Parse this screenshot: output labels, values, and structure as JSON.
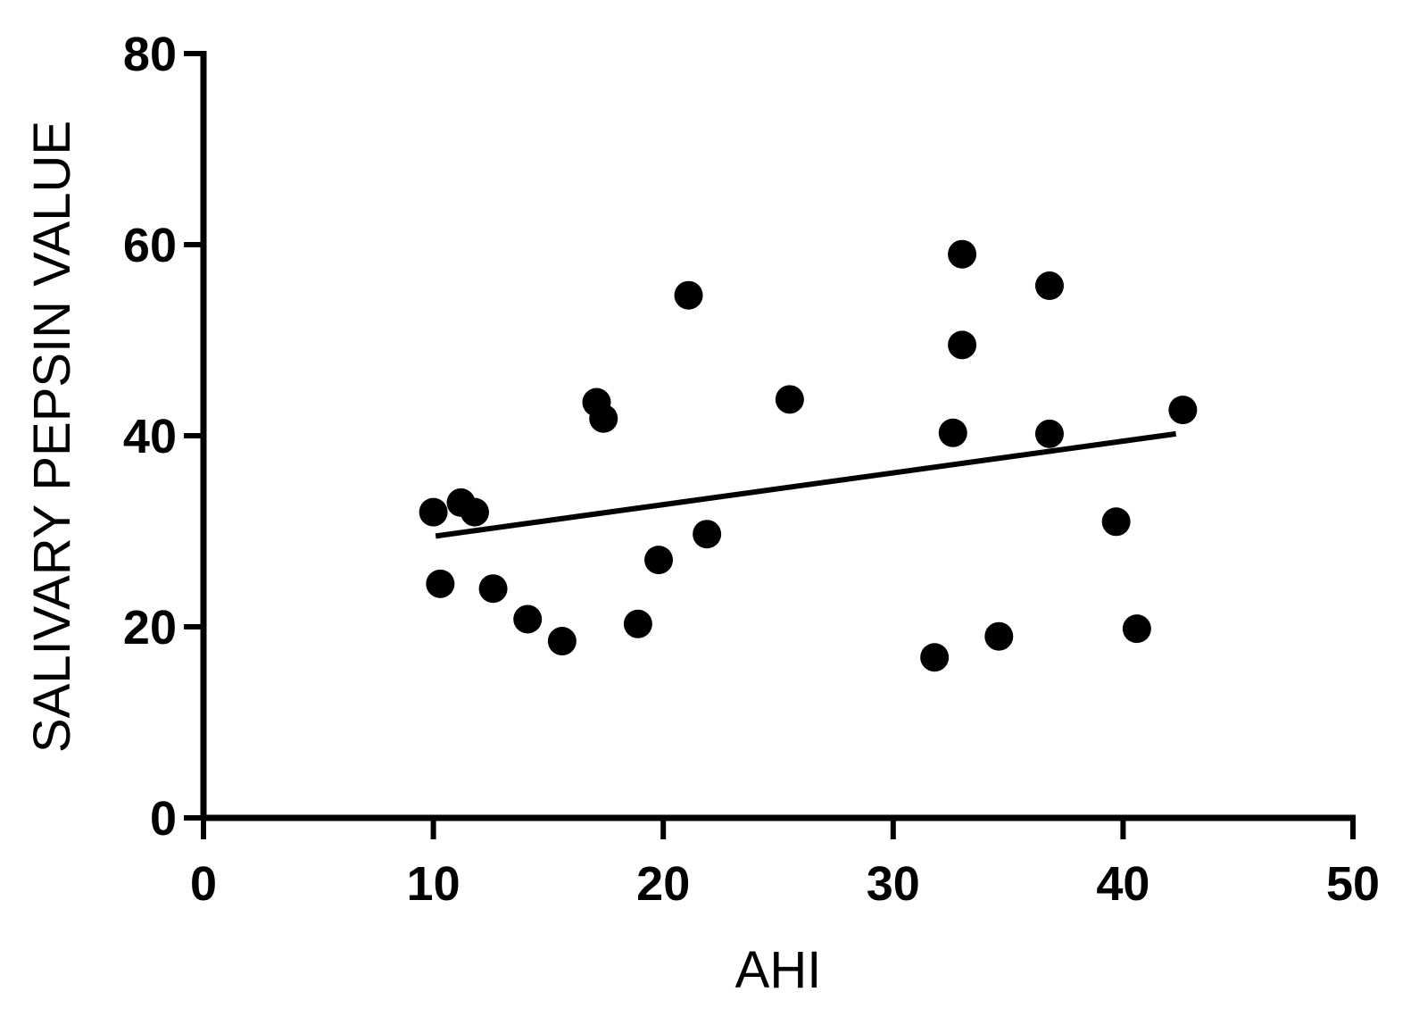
{
  "chart_data": {
    "type": "scatter",
    "title": "",
    "xlabel": "AHI",
    "ylabel": "SALIVARY PEPSIN VALUE",
    "xlim": [
      0,
      50
    ],
    "ylim": [
      0,
      80
    ],
    "x_ticks": [
      "0",
      "10",
      "20",
      "30",
      "40",
      "50"
    ],
    "y_ticks": [
      "0",
      "20",
      "40",
      "60",
      "80"
    ],
    "grid": false,
    "legend": "none",
    "colors": {
      "points": "#000000",
      "axes": "#000000",
      "fit_line": "#000000"
    },
    "series": [
      {
        "points": [
          {
            "x": 10.0,
            "y": 32.0
          },
          {
            "x": 10.3,
            "y": 24.5
          },
          {
            "x": 11.2,
            "y": 33.0
          },
          {
            "x": 11.8,
            "y": 32.0
          },
          {
            "x": 12.6,
            "y": 24.0
          },
          {
            "x": 14.1,
            "y": 20.8
          },
          {
            "x": 15.6,
            "y": 18.5
          },
          {
            "x": 17.1,
            "y": 43.5
          },
          {
            "x": 17.4,
            "y": 41.8
          },
          {
            "x": 18.9,
            "y": 20.3
          },
          {
            "x": 19.8,
            "y": 27.0
          },
          {
            "x": 21.1,
            "y": 54.7
          },
          {
            "x": 21.9,
            "y": 29.7
          },
          {
            "x": 25.5,
            "y": 43.8
          },
          {
            "x": 31.8,
            "y": 16.8
          },
          {
            "x": 32.6,
            "y": 40.3
          },
          {
            "x": 33.0,
            "y": 59.0
          },
          {
            "x": 33.0,
            "y": 49.5
          },
          {
            "x": 34.6,
            "y": 19.0
          },
          {
            "x": 36.8,
            "y": 55.7
          },
          {
            "x": 36.8,
            "y": 40.2
          },
          {
            "x": 39.7,
            "y": 31.0
          },
          {
            "x": 40.6,
            "y": 19.8
          },
          {
            "x": 42.6,
            "y": 42.7
          }
        ]
      }
    ],
    "fit_line": {
      "x": [
        10.1,
        42.3
      ],
      "y": [
        29.5,
        40.2
      ]
    }
  }
}
